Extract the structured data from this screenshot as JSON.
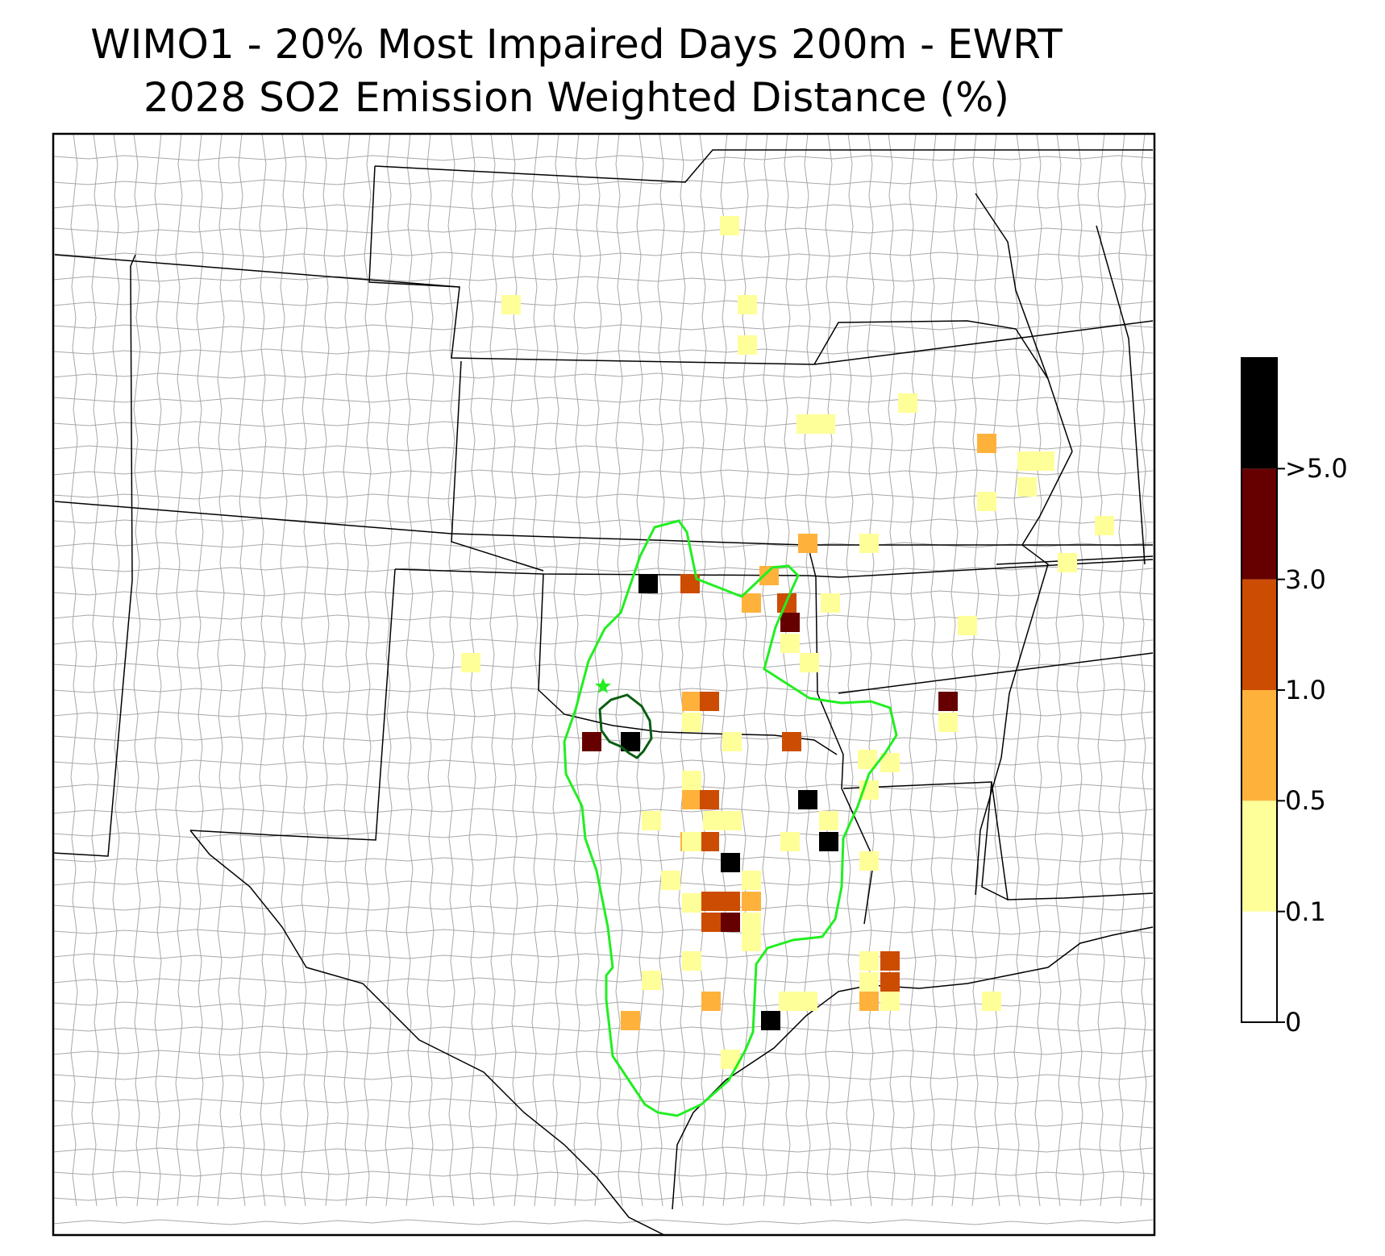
{
  "title_line1": "WIMO1 - 20% Most Impaired Days 200m - EWRT",
  "title_line2": "2028 SO2 Emission Weighted Distance (%)",
  "legend": {
    "ticks": [
      {
        "label": "0",
        "value": 0
      },
      {
        "label": "0.1",
        "value": 0.1
      },
      {
        "label": "0.5",
        "value": 0.5
      },
      {
        "label": "1.0",
        "value": 1.0
      },
      {
        "label": "3.0",
        "value": 3.0
      },
      {
        "label": ">5.0",
        "value": 5.0
      }
    ],
    "bins": [
      {
        "from": 0,
        "to": 0.1,
        "color": "#ffffff"
      },
      {
        "from": 0.1,
        "to": 0.5,
        "color": "#ffff99"
      },
      {
        "from": 0.5,
        "to": 1.0,
        "color": "#feb23c"
      },
      {
        "from": 1.0,
        "to": 3.0,
        "color": "#cc4c02"
      },
      {
        "from": 3.0,
        "to": 5.0,
        "color": "#660000"
      },
      {
        "from": 5.0,
        "to": null,
        "color": "#000000"
      }
    ]
  },
  "map_style": {
    "state_border_color": "#000000",
    "county_border_color": "#999999",
    "outer_contour_color": "#22ee22",
    "inner_contour_color": "#0b5e12",
    "site_marker_color": "#22ee22",
    "site_marker_icon": "star-icon"
  }
}
